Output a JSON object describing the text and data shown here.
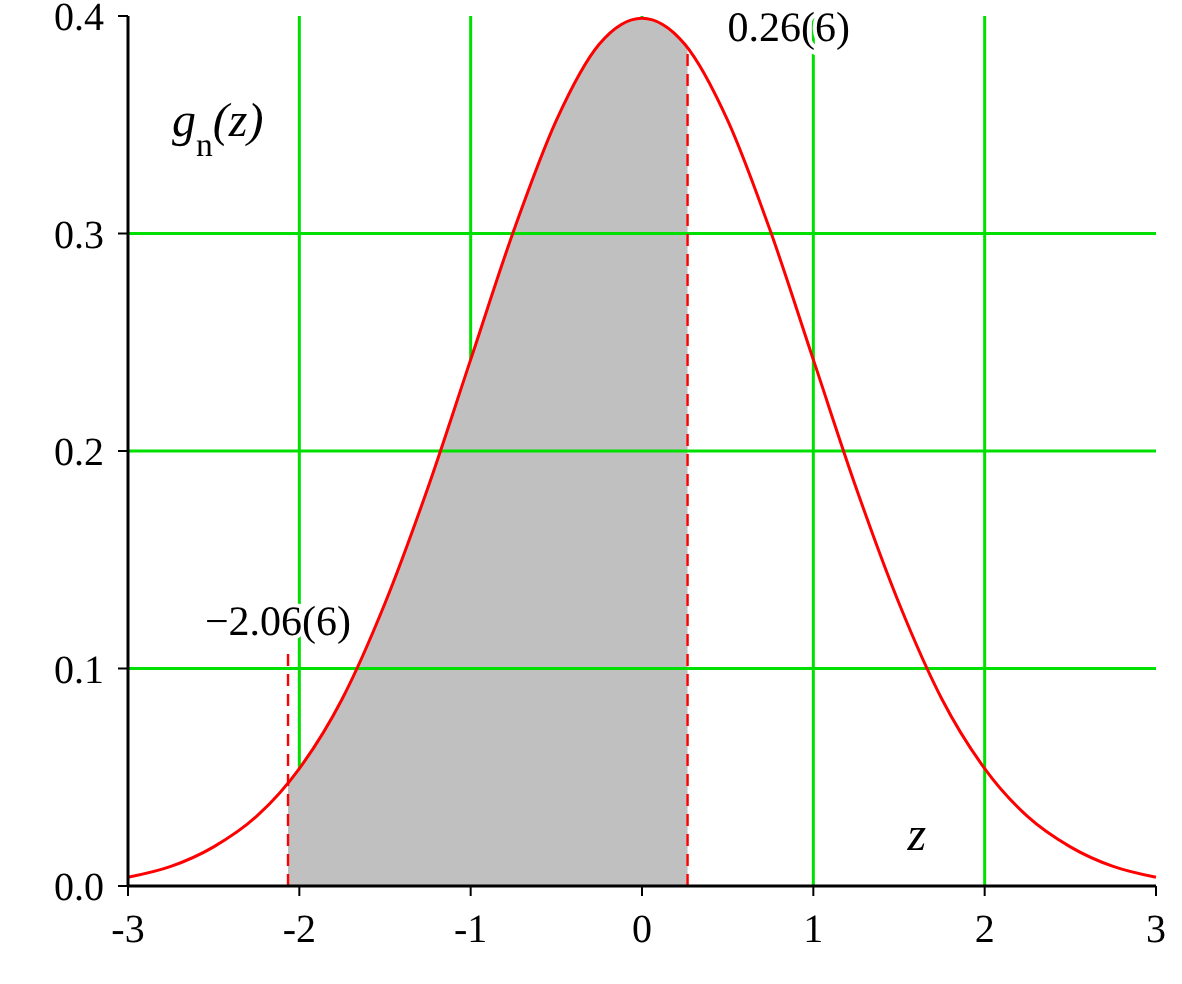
{
  "chart_data": {
    "type": "line",
    "xlabel": "z",
    "ylabel": "g$_{n}$(z)",
    "xlim": [
      -3,
      3
    ],
    "ylim": [
      0,
      0.4
    ],
    "xticks": [
      -3,
      -2,
      -1,
      0,
      1,
      2,
      3
    ],
    "yticks": [
      {
        "value": 0,
        "label": "0.0"
      },
      {
        "value": 0.1,
        "label": "0.1"
      },
      {
        "value": 0.2,
        "label": "0.2"
      },
      {
        "value": 0.3,
        "label": "0.3"
      },
      {
        "value": 0.4,
        "label": "0.4"
      }
    ],
    "grid": true,
    "marker": "none",
    "line_style": "solid",
    "series": [
      {
        "type": "area",
        "color": "#c0c0c0",
        "x": [
          -2.066,
          -2,
          -1.75,
          -1.5,
          -1.25,
          -1,
          -0.75,
          -0.5,
          -0.25,
          0,
          0.25,
          0.266
        ],
        "values": [
          0.047,
          0.054,
          0.086,
          0.13,
          0.183,
          0.242,
          0.301,
          0.352,
          0.387,
          0.399,
          0.387,
          0.385
        ]
      },
      {
        "type": "line",
        "color": "#ff0000",
        "x": [
          -3,
          -2.75,
          -2.5,
          -2.25,
          -2,
          -1.75,
          -1.5,
          -1.25,
          -1,
          -0.75,
          -0.5,
          -0.25,
          0,
          0.25,
          0.5,
          0.75,
          1,
          1.25,
          1.5,
          1.75,
          2,
          2.25,
          2.5,
          2.75,
          3
        ],
        "values": [
          0.004,
          0.009,
          0.018,
          0.032,
          0.054,
          0.086,
          0.13,
          0.183,
          0.242,
          0.301,
          0.352,
          0.387,
          0.399,
          0.387,
          0.352,
          0.301,
          0.242,
          0.183,
          0.13,
          0.086,
          0.054,
          0.032,
          0.018,
          0.009,
          0.004
        ]
      }
    ],
    "ref_lines": [
      {
        "axis": "x",
        "value": -2.066,
        "color": "#ff0000",
        "line_style": "dashed"
      },
      {
        "axis": "x",
        "value": 0.266,
        "color": "#ff0000",
        "line_style": "dashed"
      }
    ],
    "annotations": [
      {
        "text": "−2.06(6)",
        "x": -2.066,
        "y": 0.11
      },
      {
        "text": "0.26(6)",
        "x": 0.266,
        "y": 0.385
      }
    ]
  }
}
